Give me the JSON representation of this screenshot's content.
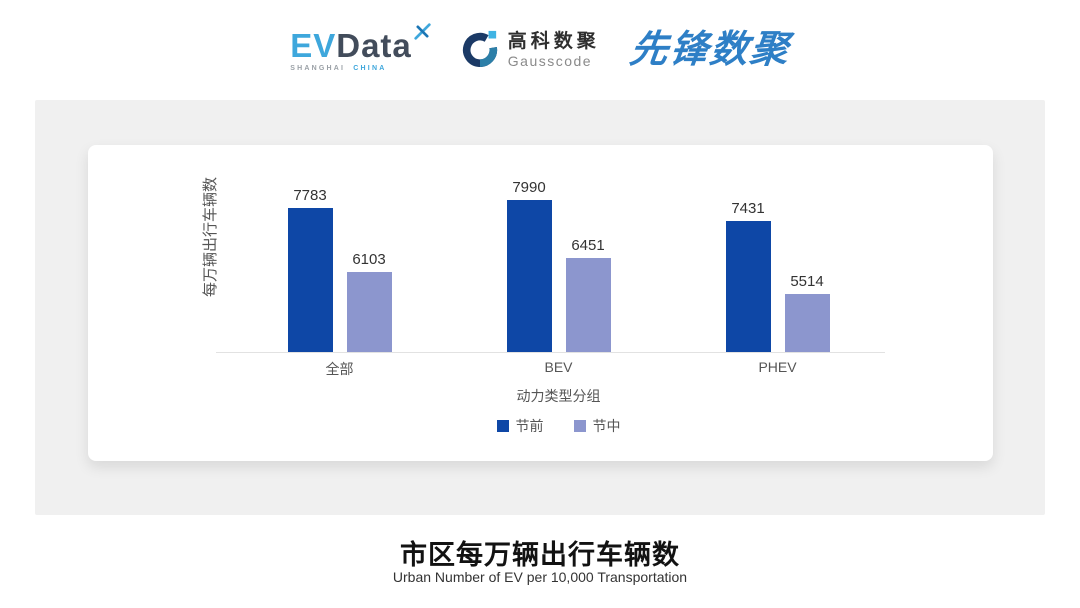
{
  "header": {
    "evdata": {
      "ev": "EV",
      "data": "Data",
      "sub_left": "SHANGHAI",
      "sub_right": "CHINA",
      "ev_color": "#3EA7DC",
      "data_color": "#424C5B",
      "sub_left_color": "#9aa0a6",
      "sub_right_color": "#3EA7DC",
      "x_star_icon": "x-star-icon"
    },
    "gausscode": {
      "cn": "高科数聚",
      "en": "Gausscode",
      "g_icon": "gausscode-g-icon",
      "g_navy": "#1b3a66",
      "g_teal": "#2c7fa8",
      "g_lightblue": "#3fb3e3"
    },
    "pioneer": {
      "text": "先锋数聚",
      "color": "#2E7FC6"
    }
  },
  "chart_data": {
    "type": "bar",
    "title": "市区每万辆出行车辆数",
    "subtitle": "Urban Number of EV per 10,000 Transportation",
    "categories": [
      "全部",
      "BEV",
      "PHEV"
    ],
    "series": [
      {
        "name": "节前",
        "color": "#0E47A6",
        "values": [
          7783,
          7990,
          7431
        ]
      },
      {
        "name": "节中",
        "color": "#8C96CE",
        "values": [
          6103,
          6451,
          5514
        ]
      }
    ],
    "xlabel": "动力类型分组",
    "ylabel": "每万辆出行车辆数",
    "ylim": [
      4000,
      8400
    ],
    "grid": false,
    "legend_position": "bottom",
    "value_labels": true,
    "axis_line_color": "#e2e2e2"
  }
}
